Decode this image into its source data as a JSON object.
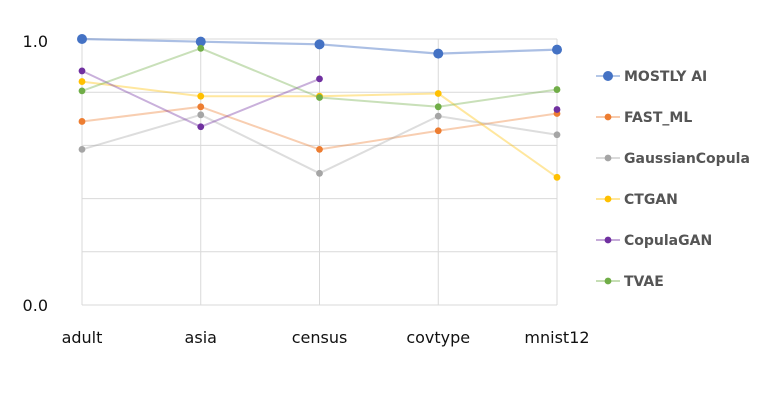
{
  "chart_data": {
    "type": "line",
    "title": "",
    "xlabel": "",
    "ylabel": "",
    "categories": [
      "adult",
      "asia",
      "census",
      "covtype",
      "mnist12"
    ],
    "ylim": [
      0.0,
      1.0
    ],
    "y_tick_labels": [
      "0.0",
      "1.0"
    ],
    "y_gridlines": [
      0.0,
      0.2,
      0.4,
      0.6,
      0.8,
      1.0
    ],
    "x_gridlines": true,
    "legend_position": "right",
    "series": [
      {
        "name": "MOSTLY AI",
        "color": "#4472C4",
        "values": [
          1.0,
          0.99,
          0.98,
          0.945,
          0.96
        ],
        "emphasis": true
      },
      {
        "name": "FAST_ML",
        "color": "#ED7D31",
        "values": [
          0.69,
          0.745,
          0.585,
          0.655,
          0.72
        ]
      },
      {
        "name": "GaussianCopula",
        "color": "#A5A5A5",
        "values": [
          0.585,
          0.715,
          0.495,
          0.71,
          0.64
        ]
      },
      {
        "name": "CTGAN",
        "color": "#FFC000",
        "values": [
          0.84,
          0.785,
          0.785,
          0.795,
          0.48
        ]
      },
      {
        "name": "CopulaGAN",
        "color": "#7030A0",
        "values": [
          0.88,
          0.67,
          0.85,
          null,
          0.735
        ]
      },
      {
        "name": "TVAE",
        "color": "#70AD47",
        "values": [
          0.805,
          0.965,
          0.78,
          0.745,
          0.81
        ]
      }
    ]
  }
}
